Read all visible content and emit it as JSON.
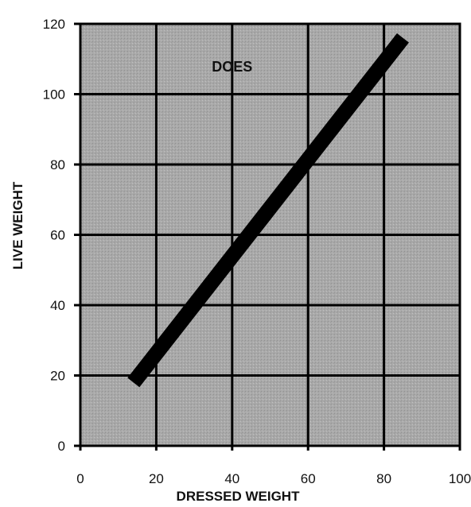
{
  "chart_data": {
    "type": "line",
    "title": "",
    "xlabel": "DRESSED WEIGHT",
    "ylabel": "LIVE WEIGHT",
    "xlim": [
      0,
      100
    ],
    "ylim": [
      0,
      120
    ],
    "x_ticks": [
      0,
      20,
      40,
      60,
      80,
      100
    ],
    "y_ticks": [
      0,
      20,
      40,
      60,
      80,
      100,
      120
    ],
    "x_tick_labels": [
      "0",
      "20",
      "40",
      "60",
      "80",
      "100"
    ],
    "y_tick_labels": [
      "0",
      "20",
      "40",
      "60",
      "80",
      "100",
      "120"
    ],
    "grid": true,
    "legend": "none",
    "annotations": [
      {
        "text": "DOES",
        "x": 40,
        "y": 108
      }
    ],
    "series": [
      {
        "x": [
          14,
          85
        ],
        "y": [
          18,
          116
        ]
      }
    ],
    "colors": {
      "plot_background": "#a8a8a8",
      "grid": "#000000",
      "line": "#000000",
      "text": "#111111"
    }
  }
}
